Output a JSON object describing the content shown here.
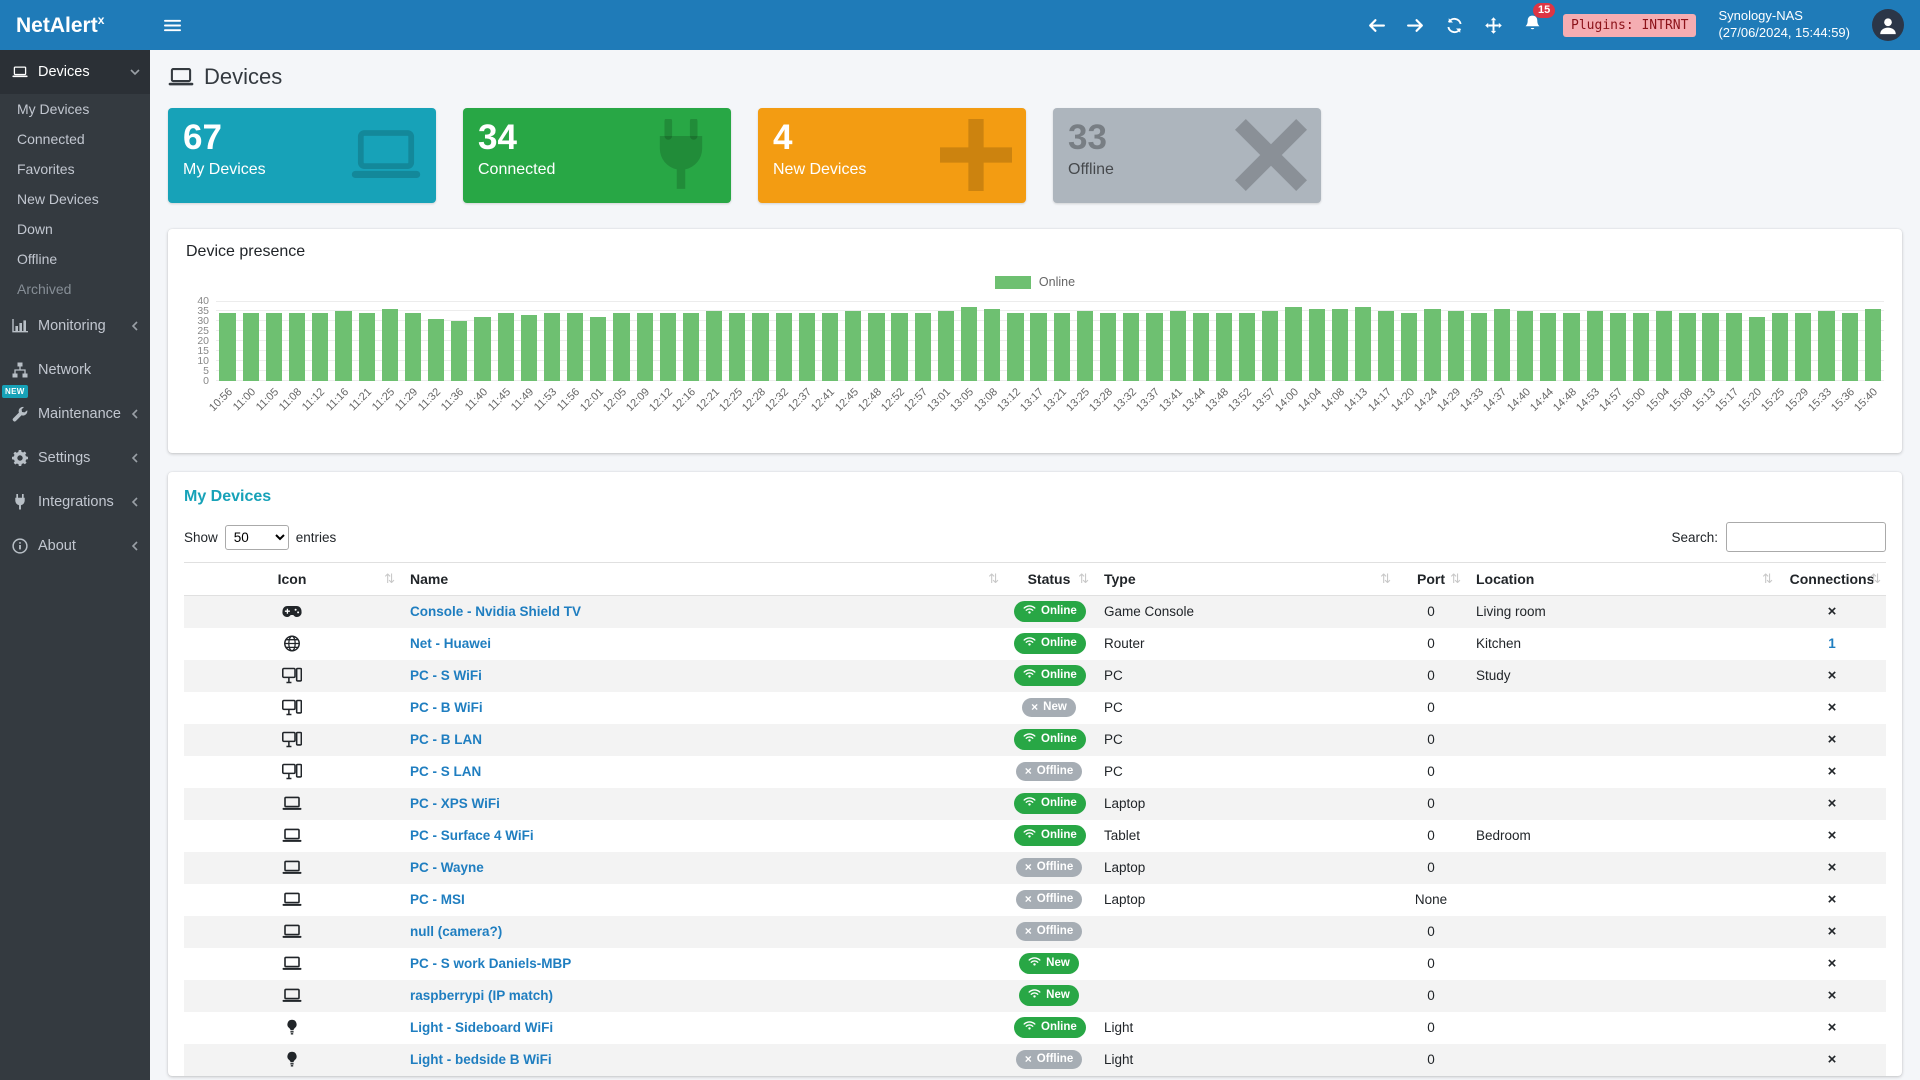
{
  "colors": {
    "topbar_blue": "#1f7bb8",
    "sidebar_dark": "#343a40",
    "accent_teal": "#17a2b8",
    "link_blue": "#1f7ec0",
    "online_green": "#28a745",
    "offline_gray": "#a6adb4",
    "chart_bar_green": "#6ec071"
  },
  "topbar": {
    "brand": "NetAlert",
    "brand_sup": "x",
    "notifications_count": "15",
    "plugins_badge": "Plugins: INTRNT",
    "host": "Synology-NAS",
    "timestamp": "(27/06/2024, 15:44:59)"
  },
  "sidebar": {
    "items": [
      {
        "label": "Devices",
        "icon": "laptop-icon",
        "active": true,
        "chevron": "down",
        "children": [
          {
            "label": "My Devices"
          },
          {
            "label": "Connected"
          },
          {
            "label": "Favorites"
          },
          {
            "label": "New Devices"
          },
          {
            "label": "Down"
          },
          {
            "label": "Offline"
          },
          {
            "label": "Archived",
            "muted": true
          }
        ]
      },
      {
        "label": "Monitoring",
        "icon": "chart-icon",
        "chevron": "left"
      },
      {
        "label": "Network",
        "icon": "network-icon"
      },
      {
        "label": "Maintenance",
        "icon": "wrench-icon",
        "chevron": "left",
        "new_badge": "NEW"
      },
      {
        "label": "Settings",
        "icon": "gear-icon",
        "chevron": "left"
      },
      {
        "label": "Integrations",
        "icon": "plug-icon",
        "chevron": "left"
      },
      {
        "label": "About",
        "icon": "info-icon",
        "chevron": "left"
      }
    ]
  },
  "page": {
    "title": "Devices"
  },
  "stat_cards": [
    {
      "value": "67",
      "label": "My Devices",
      "icon": "laptop-icon",
      "color": "#17a2b8"
    },
    {
      "value": "34",
      "label": "Connected",
      "icon": "plug-icon",
      "color": "#28a745"
    },
    {
      "value": "4",
      "label": "New Devices",
      "icon": "plus-icon",
      "color": "#f39c12"
    },
    {
      "value": "33",
      "label": "Offline",
      "icon": "x-icon",
      "color": "#adb5bd",
      "muted": true
    }
  ],
  "presence": {
    "title": "Device presence",
    "chart_data": {
      "type": "bar",
      "title": "Device presence",
      "legend_position": "top",
      "grid": true,
      "ylim": [
        0,
        40
      ],
      "yticks": [
        0,
        5,
        10,
        15,
        20,
        25,
        30,
        35,
        40
      ],
      "x": [
        "10:56",
        "11:00",
        "11:05",
        "11:08",
        "11:12",
        "11:16",
        "11:21",
        "11:25",
        "11:29",
        "11:32",
        "11:36",
        "11:40",
        "11:45",
        "11:49",
        "11:53",
        "11:56",
        "12:01",
        "12:05",
        "12:09",
        "12:12",
        "12:16",
        "12:21",
        "12:25",
        "12:28",
        "12:32",
        "12:37",
        "12:41",
        "12:45",
        "12:48",
        "12:52",
        "12:57",
        "13:01",
        "13:05",
        "13:08",
        "13:12",
        "13:17",
        "13:21",
        "13:25",
        "13:28",
        "13:32",
        "13:37",
        "13:41",
        "13:44",
        "13:48",
        "13:52",
        "13:57",
        "14:00",
        "14:04",
        "14:08",
        "14:13",
        "14:17",
        "14:20",
        "14:24",
        "14:29",
        "14:33",
        "14:37",
        "14:40",
        "14:44",
        "14:48",
        "14:53",
        "14:57",
        "15:00",
        "15:04",
        "15:08",
        "15:13",
        "15:17",
        "15:20",
        "15:25",
        "15:29",
        "15:33",
        "15:36",
        "15:40"
      ],
      "series": [
        {
          "name": "Online",
          "color": "#6ec071",
          "values": [
            34,
            34,
            34,
            34,
            34,
            35,
            34,
            36,
            34,
            31,
            30,
            32,
            34,
            33,
            34,
            34,
            32,
            34,
            34,
            34,
            34,
            35,
            34,
            34,
            34,
            34,
            34,
            35,
            34,
            34,
            34,
            35,
            37,
            36,
            34,
            34,
            34,
            35,
            34,
            34,
            34,
            35,
            34,
            34,
            34,
            35,
            37,
            36,
            36,
            37,
            35,
            34,
            36,
            35,
            34,
            36,
            35,
            34,
            34,
            35,
            34,
            34,
            35,
            34,
            34,
            34,
            32,
            34,
            34,
            35,
            34,
            36
          ]
        }
      ]
    }
  },
  "devices_table": {
    "title": "My Devices",
    "show_label": "Show",
    "page_length": "50",
    "entries_label": "entries",
    "search_label": "Search:",
    "search_value": "",
    "columns": [
      "Icon",
      "Name",
      "Status",
      "Type",
      "Port",
      "Location",
      "Connections"
    ],
    "rows": [
      {
        "icon": "gamepad-icon",
        "name": "Console - Nvidia Shield TV",
        "status": {
          "label": "Online",
          "variant": "green",
          "icon": "wifi"
        },
        "type": "Game Console",
        "port": "0",
        "location": "Living room",
        "connections": "x"
      },
      {
        "icon": "globe-icon",
        "name": "Net - Huawei",
        "status": {
          "label": "Online",
          "variant": "green",
          "icon": "wifi"
        },
        "type": "Router",
        "port": "0",
        "location": "Kitchen",
        "connections": "1"
      },
      {
        "icon": "desktop-icon",
        "name": "PC - S WiFi",
        "status": {
          "label": "Online",
          "variant": "green",
          "icon": "wifi"
        },
        "type": "PC",
        "port": "0",
        "location": "Study",
        "connections": "x"
      },
      {
        "icon": "desktop-icon",
        "name": "PC - B WiFi",
        "status": {
          "label": "New",
          "variant": "gray",
          "icon": "x"
        },
        "type": "PC",
        "port": "0",
        "location": "",
        "connections": "x"
      },
      {
        "icon": "desktop-icon",
        "name": "PC - B LAN",
        "status": {
          "label": "Online",
          "variant": "green",
          "icon": "wifi"
        },
        "type": "PC",
        "port": "0",
        "location": "",
        "connections": "x"
      },
      {
        "icon": "desktop-icon",
        "name": "PC - S LAN",
        "status": {
          "label": "Offline",
          "variant": "gray",
          "icon": "x"
        },
        "type": "PC",
        "port": "0",
        "location": "",
        "connections": "x"
      },
      {
        "icon": "laptop-icon",
        "name": "PC - XPS WiFi",
        "status": {
          "label": "Online",
          "variant": "green",
          "icon": "wifi"
        },
        "type": "Laptop",
        "port": "0",
        "location": "",
        "connections": "x"
      },
      {
        "icon": "laptop-icon",
        "name": "PC - Surface 4 WiFi",
        "status": {
          "label": "Online",
          "variant": "green",
          "icon": "wifi"
        },
        "type": "Tablet",
        "port": "0",
        "location": "Bedroom",
        "connections": "x"
      },
      {
        "icon": "laptop-icon",
        "name": "PC - Wayne",
        "status": {
          "label": "Offline",
          "variant": "gray",
          "icon": "x"
        },
        "type": "Laptop",
        "port": "0",
        "location": "",
        "connections": "x"
      },
      {
        "icon": "laptop-icon",
        "name": "PC - MSI",
        "status": {
          "label": "Offline",
          "variant": "gray",
          "icon": "x"
        },
        "type": "Laptop",
        "port": "None",
        "location": "",
        "connections": "x"
      },
      {
        "icon": "laptop-icon",
        "name": "null (camera?)",
        "status": {
          "label": "Offline",
          "variant": "gray",
          "icon": "x"
        },
        "type": "",
        "port": "0",
        "location": "",
        "connections": "x"
      },
      {
        "icon": "laptop-icon",
        "name": "PC - S work Daniels-MBP",
        "status": {
          "label": "New",
          "variant": "green",
          "icon": "wifi"
        },
        "type": "",
        "port": "0",
        "location": "",
        "connections": "x"
      },
      {
        "icon": "laptop-icon",
        "name": "raspberrypi (IP match)",
        "status": {
          "label": "New",
          "variant": "green",
          "icon": "wifi"
        },
        "type": "",
        "port": "0",
        "location": "",
        "connections": "x"
      },
      {
        "icon": "bulb-icon",
        "name": "Light - Sideboard WiFi",
        "status": {
          "label": "Online",
          "variant": "green",
          "icon": "wifi"
        },
        "type": "Light",
        "port": "0",
        "location": "",
        "connections": "x"
      },
      {
        "icon": "bulb-icon",
        "name": "Light - bedside B WiFi",
        "status": {
          "label": "Offline",
          "variant": "gray",
          "icon": "x"
        },
        "type": "Light",
        "port": "0",
        "location": "",
        "connections": "x"
      }
    ]
  }
}
